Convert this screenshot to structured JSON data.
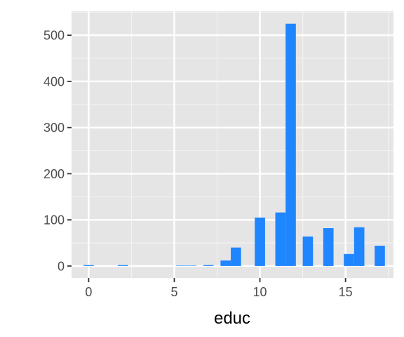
{
  "chart_data": {
    "type": "bar",
    "title": "",
    "xlabel": "educ",
    "ylabel": "",
    "xlim": [
      -1.0,
      17.8
    ],
    "ylim": [
      -26,
      552
    ],
    "x_ticks": [
      0,
      5,
      10,
      15
    ],
    "y_ticks": [
      0,
      100,
      200,
      300,
      400,
      500
    ],
    "grid": true,
    "bar_color": "#1f86ff",
    "panel_color": "#e5e5e5",
    "bin_width": 0.6,
    "bins": [
      {
        "x": 0,
        "value": 2
      },
      {
        "x": 2,
        "value": 2
      },
      {
        "x": 5.4,
        "value": 1
      },
      {
        "x": 6,
        "value": 1
      },
      {
        "x": 7,
        "value": 2
      },
      {
        "x": 8,
        "value": 12
      },
      {
        "x": 8.6,
        "value": 40
      },
      {
        "x": 10,
        "value": 105
      },
      {
        "x": 11.2,
        "value": 116
      },
      {
        "x": 11.8,
        "value": 525
      },
      {
        "x": 12.8,
        "value": 64
      },
      {
        "x": 14,
        "value": 82
      },
      {
        "x": 15.2,
        "value": 26
      },
      {
        "x": 15.8,
        "value": 84
      },
      {
        "x": 17,
        "value": 44
      }
    ]
  }
}
